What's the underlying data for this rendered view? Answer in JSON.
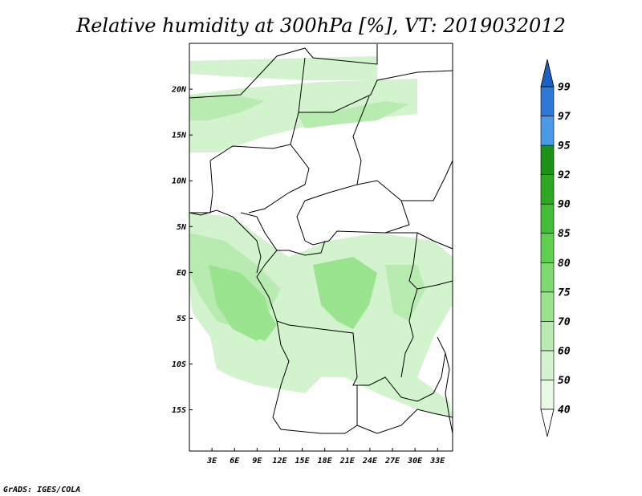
{
  "title": "Relative humidity at 300hPa [%], VT: 2019032012",
  "credit": "GrADS: IGES/COLA",
  "map": {
    "lat_range": [
      -19.5,
      25
    ],
    "lon_range": [
      0,
      35
    ],
    "lat_ticks": [
      {
        "value": 20,
        "label": "20N"
      },
      {
        "value": 15,
        "label": "15N"
      },
      {
        "value": 10,
        "label": "10N"
      },
      {
        "value": 5,
        "label": "5N"
      },
      {
        "value": 0,
        "label": "EQ"
      },
      {
        "value": -5,
        "label": "5S"
      },
      {
        "value": -10,
        "label": "10S"
      },
      {
        "value": -15,
        "label": "15S"
      }
    ],
    "lon_ticks": [
      {
        "value": 3,
        "label": "3E"
      },
      {
        "value": 6,
        "label": "6E"
      },
      {
        "value": 9,
        "label": "9E"
      },
      {
        "value": 12,
        "label": "12E"
      },
      {
        "value": 15,
        "label": "15E"
      },
      {
        "value": 18,
        "label": "18E"
      },
      {
        "value": 21,
        "label": "21E"
      },
      {
        "value": 24,
        "label": "24E"
      },
      {
        "value": 27,
        "label": "27E"
      },
      {
        "value": 30,
        "label": "30E"
      },
      {
        "value": 33,
        "label": "33E"
      }
    ]
  },
  "colorbar": {
    "levels": [
      {
        "label": "40",
        "color": "#e8f9e6"
      },
      {
        "label": "50",
        "color": "#d2f3cd"
      },
      {
        "label": "60",
        "color": "#b7ebb0"
      },
      {
        "label": "70",
        "color": "#9ae38f"
      },
      {
        "label": "75",
        "color": "#7ed970"
      },
      {
        "label": "80",
        "color": "#5fcf4f"
      },
      {
        "label": "85",
        "color": "#44bd36"
      },
      {
        "label": "90",
        "color": "#2ea823"
      },
      {
        "label": "92",
        "color": "#1e9218"
      },
      {
        "label": "95",
        "color": "#4a9ae6"
      },
      {
        "label": "97",
        "color": "#2e78d8"
      },
      {
        "label": "99",
        "color": "#1f5fc4"
      }
    ],
    "under_color": "#ffffff",
    "over_color": "#1f5fc4"
  }
}
